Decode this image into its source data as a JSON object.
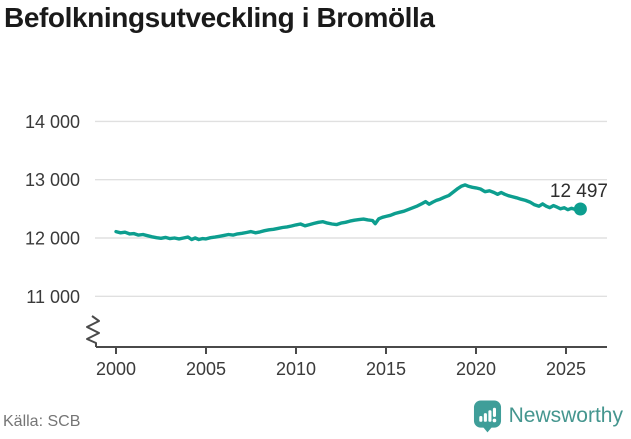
{
  "title": "Befolkningsutveckling i Bromölla",
  "source": "Källa: SCB",
  "logo": {
    "text": "Newsworthy"
  },
  "colors": {
    "line": "#0d9e8f",
    "grid": "#e0e0e0",
    "axis": "#4a4a4a",
    "tick_text": "#3a3a3a",
    "title_text": "#1a1a1a",
    "muted_text": "#757575",
    "logo_teal": "#3f9e99",
    "logo_text": "#45968f"
  },
  "chart_data": {
    "type": "line",
    "title": "Befolkningsutveckling i Bromölla",
    "xlabel": "",
    "ylabel": "",
    "grid": true,
    "legend": "none",
    "axis_break": true,
    "xlim": [
      1999,
      2027.3
    ],
    "ylim": [
      10700,
      14300
    ],
    "xticks": [
      2000,
      2005,
      2010,
      2015,
      2020,
      2025
    ],
    "yticks": [
      {
        "value": 11000,
        "label": "11 000"
      },
      {
        "value": 12000,
        "label": "12 000"
      },
      {
        "value": 13000,
        "label": "13 000"
      },
      {
        "value": 14000,
        "label": "14 000"
      }
    ],
    "x": [
      2000,
      2000.25,
      2000.5,
      2000.75,
      2001,
      2001.25,
      2001.5,
      2001.75,
      2002,
      2002.25,
      2002.5,
      2002.75,
      2003,
      2003.25,
      2003.5,
      2003.75,
      2004,
      2004.2,
      2004.4,
      2004.6,
      2004.8,
      2005,
      2005.25,
      2005.5,
      2005.75,
      2006,
      2006.25,
      2006.5,
      2006.75,
      2007,
      2007.25,
      2007.5,
      2007.75,
      2008,
      2008.25,
      2008.5,
      2008.75,
      2009,
      2009.25,
      2009.5,
      2009.75,
      2010,
      2010.25,
      2010.5,
      2010.75,
      2011,
      2011.25,
      2011.5,
      2011.75,
      2012,
      2012.25,
      2012.5,
      2012.75,
      2013,
      2013.25,
      2013.5,
      2013.75,
      2014,
      2014.25,
      2014.4,
      2014.6,
      2014.8,
      2015,
      2015.25,
      2015.5,
      2015.75,
      2016,
      2016.25,
      2016.5,
      2016.75,
      2017,
      2017.2,
      2017.4,
      2017.6,
      2017.8,
      2018,
      2018.25,
      2018.5,
      2018.75,
      2019,
      2019.2,
      2019.4,
      2019.6,
      2019.8,
      2020,
      2020.25,
      2020.5,
      2020.75,
      2021,
      2021.2,
      2021.4,
      2021.6,
      2021.8,
      2022,
      2022.25,
      2022.5,
      2022.75,
      2023,
      2023.25,
      2023.5,
      2023.7,
      2023.9,
      2024.1,
      2024.3,
      2024.5,
      2024.7,
      2024.9,
      2025.1,
      2025.3,
      2025.5,
      2025.8
    ],
    "series": [
      {
        "name": "Bromölla",
        "values": [
          12110,
          12090,
          12100,
          12070,
          12075,
          12050,
          12060,
          12040,
          12020,
          12005,
          11995,
          12010,
          11990,
          12000,
          11985,
          12000,
          12015,
          11975,
          12000,
          11975,
          11990,
          11985,
          12005,
          12015,
          12030,
          12045,
          12060,
          12050,
          12070,
          12080,
          12095,
          12110,
          12090,
          12105,
          12125,
          12140,
          12150,
          12165,
          12180,
          12190,
          12205,
          12225,
          12240,
          12210,
          12230,
          12250,
          12270,
          12280,
          12255,
          12240,
          12230,
          12255,
          12270,
          12290,
          12305,
          12315,
          12325,
          12310,
          12300,
          12245,
          12330,
          12355,
          12370,
          12390,
          12420,
          12440,
          12460,
          12490,
          12520,
          12550,
          12590,
          12625,
          12580,
          12615,
          12645,
          12665,
          12700,
          12730,
          12790,
          12850,
          12890,
          12910,
          12885,
          12870,
          12860,
          12840,
          12795,
          12810,
          12780,
          12750,
          12780,
          12750,
          12725,
          12710,
          12690,
          12665,
          12645,
          12615,
          12570,
          12545,
          12585,
          12545,
          12520,
          12555,
          12530,
          12500,
          12520,
          12485,
          12510,
          12490,
          12497
        ]
      }
    ],
    "end_point": {
      "x": 2025.8,
      "value": 12497,
      "label": "12 497"
    }
  }
}
